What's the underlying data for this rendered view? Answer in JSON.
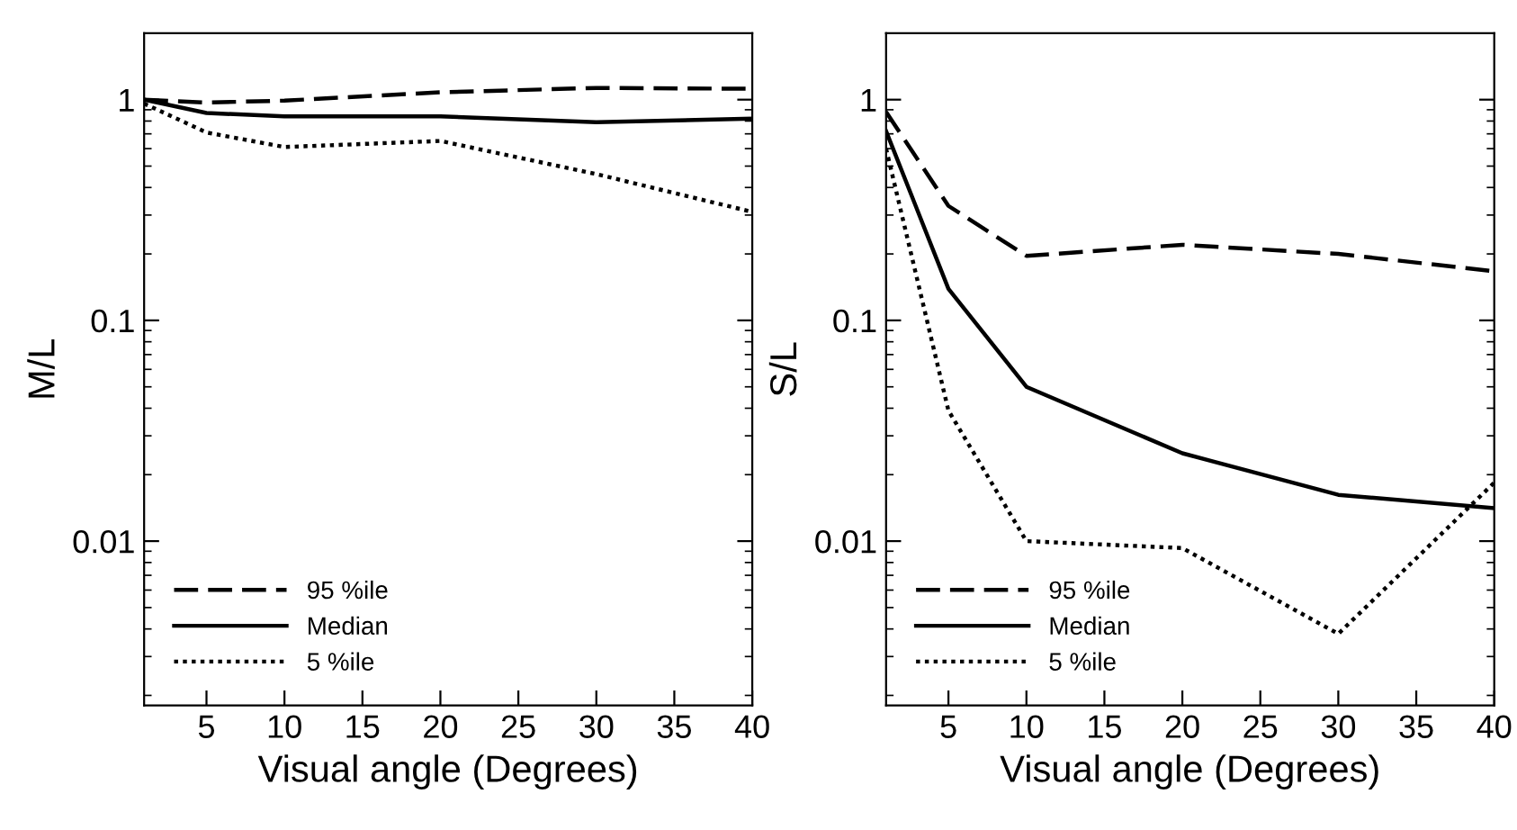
{
  "chart_data": [
    {
      "type": "line",
      "xlabel": "Visual angle (Degrees)",
      "ylabel": "M/L",
      "log": "y",
      "xlim": [
        1,
        40
      ],
      "ylim": [
        0.0018,
        2
      ],
      "xticks": [
        5,
        10,
        15,
        20,
        25,
        30,
        35,
        40
      ],
      "yticks": [
        1,
        0.1,
        0.01
      ],
      "legend": "bottom left",
      "grid": false,
      "marker": "none",
      "x": [
        1,
        5,
        10,
        20,
        30,
        40
      ],
      "series": [
        {
          "name": "95 %ile",
          "color": "#000000",
          "line_style": "dashed",
          "values": [
            1.0,
            0.97,
            0.99,
            1.08,
            1.13,
            1.12
          ]
        },
        {
          "name": "Median",
          "color": "#000000",
          "line_style": "solid",
          "values": [
            1.0,
            0.87,
            0.84,
            0.84,
            0.79,
            0.82
          ]
        },
        {
          "name": "5 %ile",
          "color": "#000000",
          "line_style": "dotted",
          "values": [
            0.96,
            0.71,
            0.61,
            0.65,
            0.46,
            0.31
          ]
        }
      ]
    },
    {
      "type": "line",
      "xlabel": "Visual angle (Degrees)",
      "ylabel": "S/L",
      "log": "y",
      "xlim": [
        1,
        40
      ],
      "ylim": [
        0.0018,
        2
      ],
      "xticks": [
        5,
        10,
        15,
        20,
        25,
        30,
        35,
        40
      ],
      "yticks": [
        1,
        0.1,
        0.01
      ],
      "legend": "bottom left",
      "grid": false,
      "marker": "none",
      "x": [
        1,
        5,
        10,
        20,
        30,
        40
      ],
      "series": [
        {
          "name": "95 %ile",
          "color": "#000000",
          "line_style": "dashed",
          "values": [
            0.88,
            0.33,
            0.196,
            0.22,
            0.2,
            0.167
          ]
        },
        {
          "name": "Median",
          "color": "#000000",
          "line_style": "solid",
          "values": [
            0.72,
            0.139,
            0.05,
            0.025,
            0.0162,
            0.0141
          ]
        },
        {
          "name": "5 %ile",
          "color": "#000000",
          "line_style": "dotted",
          "values": [
            0.6,
            0.039,
            0.01,
            0.0093,
            0.0038,
            0.0184
          ]
        }
      ]
    }
  ]
}
